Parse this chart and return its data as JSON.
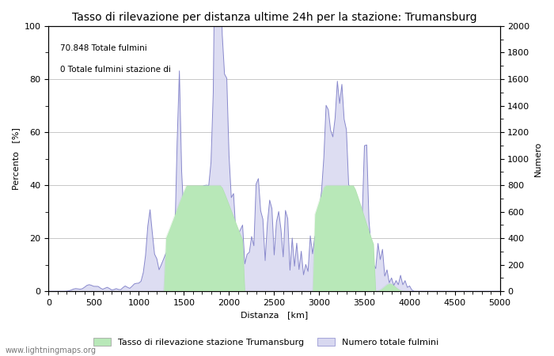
{
  "title": "Tasso di rilevazione per distanza ultime 24h per la stazione: Trumansburg",
  "xlabel": "Distanza   [km]",
  "ylabel_left": "Percento   [%]",
  "ylabel_right": "Numero",
  "annotation_line1": "70.848 Totale fulmini",
  "annotation_line2": "0 Totale fulmini stazione di",
  "xlim": [
    0,
    5000
  ],
  "ylim_left": [
    0,
    100
  ],
  "ylim_right": [
    0,
    2000
  ],
  "xticks": [
    0,
    500,
    1000,
    1500,
    2000,
    2500,
    3000,
    3500,
    4000,
    4500,
    5000
  ],
  "yticks_left": [
    0,
    20,
    40,
    60,
    80,
    100
  ],
  "yticks_right": [
    0,
    200,
    400,
    600,
    800,
    1000,
    1200,
    1400,
    1600,
    1800,
    2000
  ],
  "legend_label_green": "Tasso di rilevazione stazione Trumansburg",
  "legend_label_blue": "Numero totale fulmini",
  "fill_color_green": "#b8e8b8",
  "fill_color_blue": "#d8d8f0",
  "line_color": "#8888cc",
  "background_color": "#ffffff",
  "grid_color": "#c8c8c8",
  "watermark": "www.lightningmaps.org",
  "title_fontsize": 10,
  "axis_fontsize": 8,
  "tick_fontsize": 8,
  "legend_fontsize": 8
}
